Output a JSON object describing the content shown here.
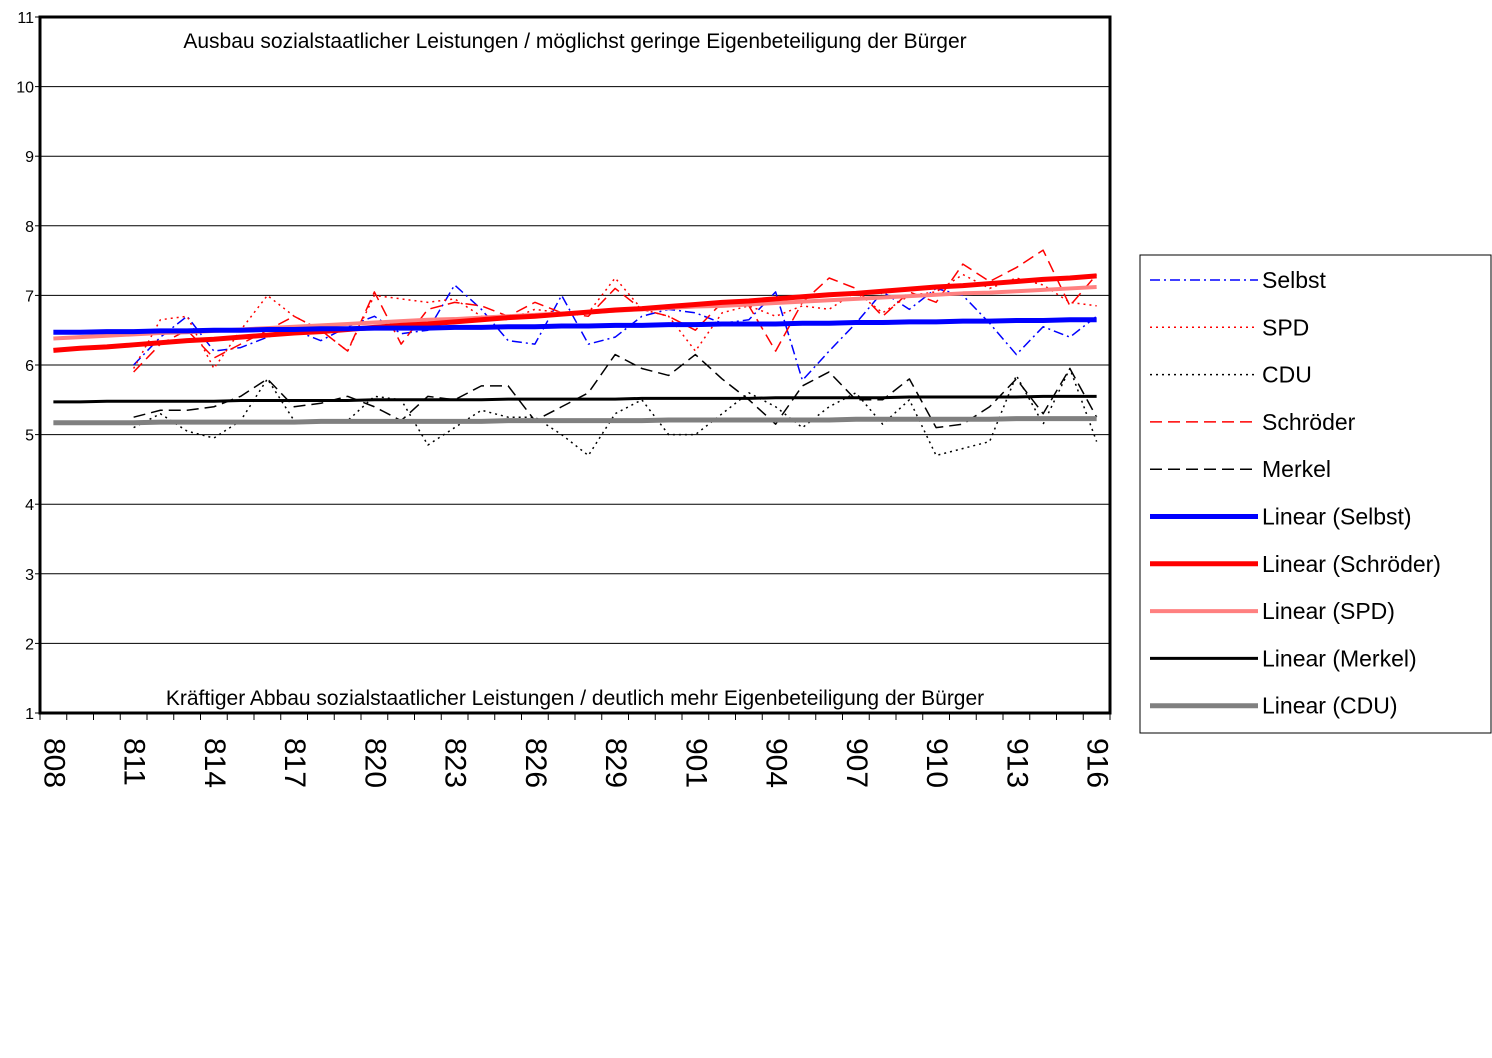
{
  "chart_data": {
    "type": "line",
    "annotations": [
      "Ausbau sozialstaatlicher Leistungen / möglichst geringe Eigenbeteiligung der Bürger",
      "Kräftiger Abbau sozialstaatlicher Leistungen / deutlich mehr Eigenbeteiligung der Bürger"
    ],
    "categories": [
      "808",
      null,
      null,
      "811",
      null,
      null,
      "814",
      null,
      null,
      "817",
      null,
      null,
      "820",
      null,
      null,
      "823",
      null,
      null,
      "826",
      null,
      null,
      "829",
      null,
      null,
      "901",
      null,
      null,
      "904",
      null,
      null,
      "907",
      null,
      null,
      "910",
      null,
      null,
      "913",
      null,
      null,
      "916"
    ],
    "ylim": [
      1,
      11
    ],
    "yticks": [
      1,
      2,
      3,
      4,
      5,
      6,
      7,
      8,
      9,
      10,
      11
    ],
    "grid": true,
    "legend": "right",
    "series": [
      {
        "name": "Selbst",
        "color": "#0000ff",
        "dash": "dashdot",
        "width": 1.5,
        "values": [
          null,
          null,
          null,
          6.0,
          6.4,
          6.7,
          6.2,
          6.25,
          6.4,
          6.5,
          6.35,
          6.55,
          6.7,
          6.45,
          6.5,
          7.15,
          6.8,
          6.35,
          6.3,
          7.0,
          6.3,
          6.4,
          6.7,
          6.8,
          6.75,
          6.6,
          6.65,
          7.05,
          5.78,
          6.2,
          6.6,
          7.05,
          6.8,
          7.1,
          7.0,
          6.6,
          6.15,
          6.55,
          6.4,
          6.7
        ]
      },
      {
        "name": "SPD",
        "color": "#ff0000",
        "dash": "dot",
        "width": 1.5,
        "values": [
          null,
          null,
          null,
          5.95,
          6.65,
          6.7,
          5.95,
          6.5,
          7.0,
          6.7,
          6.5,
          6.2,
          7.0,
          6.95,
          6.9,
          6.95,
          6.7,
          6.65,
          6.8,
          6.75,
          6.75,
          7.25,
          6.8,
          6.7,
          6.2,
          6.75,
          6.85,
          6.7,
          6.85,
          6.8,
          7.05,
          6.75,
          7.0,
          7.05,
          7.3,
          7.1,
          7.25,
          7.15,
          6.9,
          6.85
        ]
      },
      {
        "name": "CDU",
        "color": "#000000",
        "dash": "dot",
        "width": 1.5,
        "values": [
          null,
          null,
          null,
          5.1,
          5.3,
          5.05,
          4.95,
          5.2,
          5.8,
          5.2,
          5.2,
          5.2,
          5.55,
          5.5,
          4.85,
          5.1,
          5.35,
          5.25,
          5.25,
          5.0,
          4.7,
          5.3,
          5.5,
          5.0,
          5.0,
          5.3,
          5.6,
          5.4,
          5.1,
          5.4,
          5.6,
          5.15,
          5.5,
          4.7,
          4.8,
          4.9,
          5.85,
          5.15,
          5.95,
          4.9
        ]
      },
      {
        "name": "Schröder",
        "color": "#ff0000",
        "dash": "dash",
        "width": 1.5,
        "values": [
          null,
          null,
          null,
          5.9,
          6.3,
          6.5,
          6.1,
          6.3,
          6.5,
          6.7,
          6.5,
          6.2,
          7.05,
          6.3,
          6.8,
          6.9,
          6.85,
          6.7,
          6.9,
          6.75,
          6.7,
          7.1,
          6.8,
          6.7,
          6.5,
          6.9,
          6.85,
          6.2,
          6.9,
          7.25,
          7.1,
          6.7,
          7.05,
          6.9,
          7.45,
          7.2,
          7.4,
          7.65,
          6.85,
          7.3
        ]
      },
      {
        "name": "Merkel",
        "color": "#000000",
        "dash": "dash",
        "width": 1.5,
        "values": [
          null,
          null,
          null,
          5.25,
          5.35,
          5.35,
          5.4,
          5.55,
          5.8,
          5.4,
          5.45,
          5.55,
          5.4,
          5.2,
          5.55,
          5.5,
          5.7,
          5.7,
          5.2,
          5.4,
          5.6,
          6.15,
          5.95,
          5.85,
          6.15,
          5.8,
          5.5,
          5.15,
          5.7,
          5.9,
          5.5,
          5.5,
          5.8,
          5.1,
          5.15,
          5.4,
          5.8,
          5.3,
          5.95,
          5.25
        ]
      },
      {
        "name": "Linear (Selbst)",
        "color": "#0000ff",
        "dash": "solid",
        "width": 5,
        "values": [
          6.47,
          6.47,
          6.48,
          6.48,
          6.49,
          6.49,
          6.5,
          6.5,
          6.51,
          6.51,
          6.52,
          6.52,
          6.53,
          6.53,
          6.53,
          6.54,
          6.54,
          6.55,
          6.55,
          6.56,
          6.56,
          6.57,
          6.57,
          6.58,
          6.58,
          6.59,
          6.59,
          6.59,
          6.6,
          6.6,
          6.61,
          6.61,
          6.62,
          6.62,
          6.63,
          6.63,
          6.64,
          6.64,
          6.65,
          6.65
        ]
      },
      {
        "name": "Linear (Schröder)",
        "color": "#ff0000",
        "dash": "solid",
        "width": 5,
        "values": [
          6.21,
          6.24,
          6.26,
          6.29,
          6.32,
          6.35,
          6.37,
          6.4,
          6.43,
          6.46,
          6.48,
          6.51,
          6.54,
          6.57,
          6.59,
          6.62,
          6.65,
          6.68,
          6.7,
          6.73,
          6.76,
          6.79,
          6.81,
          6.84,
          6.87,
          6.9,
          6.92,
          6.95,
          6.98,
          7.01,
          7.03,
          7.06,
          7.09,
          7.12,
          7.14,
          7.17,
          7.2,
          7.23,
          7.25,
          7.28
        ]
      },
      {
        "name": "Linear (SPD)",
        "color": "#ff8080",
        "dash": "solid",
        "width": 4,
        "values": [
          6.38,
          6.4,
          6.42,
          6.44,
          6.46,
          6.47,
          6.49,
          6.51,
          6.53,
          6.55,
          6.57,
          6.59,
          6.61,
          6.63,
          6.65,
          6.66,
          6.68,
          6.7,
          6.72,
          6.74,
          6.76,
          6.78,
          6.8,
          6.82,
          6.84,
          6.85,
          6.87,
          6.89,
          6.91,
          6.93,
          6.95,
          6.97,
          6.99,
          7.01,
          7.03,
          7.04,
          7.06,
          7.08,
          7.1,
          7.12
        ]
      },
      {
        "name": "Linear (Merkel)",
        "color": "#000000",
        "dash": "solid",
        "width": 3,
        "values": [
          5.47,
          5.47,
          5.48,
          5.48,
          5.48,
          5.48,
          5.48,
          5.49,
          5.49,
          5.49,
          5.49,
          5.49,
          5.5,
          5.5,
          5.5,
          5.5,
          5.5,
          5.51,
          5.51,
          5.51,
          5.51,
          5.51,
          5.52,
          5.52,
          5.52,
          5.52,
          5.52,
          5.53,
          5.53,
          5.53,
          5.53,
          5.53,
          5.54,
          5.54,
          5.54,
          5.54,
          5.54,
          5.55,
          5.55,
          5.55
        ]
      },
      {
        "name": "Linear (CDU)",
        "color": "#808080",
        "dash": "solid",
        "width": 5,
        "values": [
          5.17,
          5.17,
          5.17,
          5.17,
          5.18,
          5.18,
          5.18,
          5.18,
          5.18,
          5.18,
          5.19,
          5.19,
          5.19,
          5.19,
          5.19,
          5.19,
          5.19,
          5.2,
          5.2,
          5.2,
          5.2,
          5.2,
          5.2,
          5.21,
          5.21,
          5.21,
          5.21,
          5.21,
          5.21,
          5.21,
          5.22,
          5.22,
          5.22,
          5.22,
          5.22,
          5.22,
          5.23,
          5.23,
          5.23,
          5.23
        ]
      }
    ]
  }
}
